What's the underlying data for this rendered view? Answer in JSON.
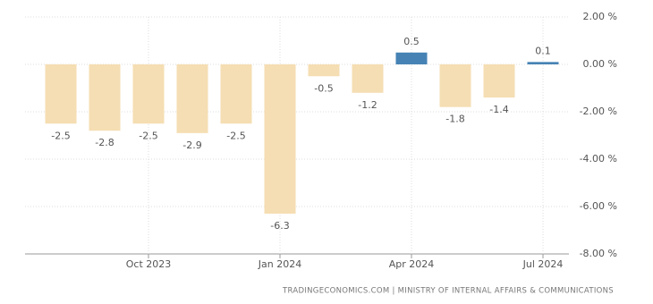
{
  "chart_data": {
    "type": "bar",
    "categories": [
      null,
      null,
      "Oct 2023",
      null,
      null,
      "Jan 2024",
      null,
      null,
      "Apr 2024",
      null,
      null,
      "Jul 2024"
    ],
    "values": [
      -2.5,
      -2.8,
      -2.5,
      -2.9,
      -2.5,
      -6.3,
      -0.5,
      -1.2,
      0.5,
      -1.8,
      -1.4,
      0.1
    ],
    "colors": [
      "#f5deb3",
      "#f5deb3",
      "#f5deb3",
      "#f5deb3",
      "#f5deb3",
      "#f5deb3",
      "#f5deb3",
      "#f5deb3",
      "#4682b4",
      "#f5deb3",
      "#f5deb3",
      "#4682b4"
    ],
    "ylim": [
      -8,
      2
    ],
    "yticks": [
      {
        "value": 2,
        "label": "2.00 %"
      },
      {
        "value": 0,
        "label": "0.00 %"
      },
      {
        "value": -2,
        "label": "-2.00 %"
      },
      {
        "value": -4,
        "label": "-4.00 %"
      },
      {
        "value": -6,
        "label": "-6.00 %"
      },
      {
        "value": -8,
        "label": "-8.00 %"
      }
    ],
    "grid": true,
    "source": "TRADINGECONOMICS.COM | MINISTRY OF INTERNAL AFFAIRS & COMMUNICATIONS"
  }
}
